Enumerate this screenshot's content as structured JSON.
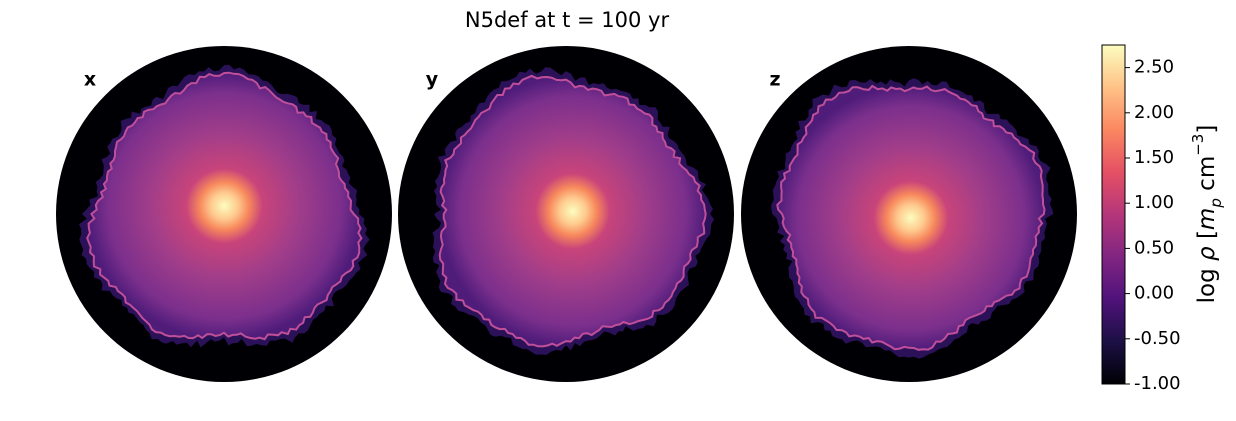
{
  "chart_data": {
    "type": "image",
    "title": "N5def at t = 100 yr",
    "panels": [
      "x",
      "y",
      "z"
    ],
    "colormap": "magma",
    "colorbar_label": [
      "log ",
      "ρ",
      " [",
      "m",
      "p",
      " cm",
      "−3",
      "]"
    ],
    "clim": [
      -1,
      2.75
    ],
    "cticks": [
      {
        "value": -1,
        "label": "-1.00"
      },
      {
        "value": -0.5,
        "label": "-0.50"
      },
      {
        "value": 0,
        "label": "0.00"
      },
      {
        "value": 0.5,
        "label": "0.50"
      },
      {
        "value": 1,
        "label": "1.00"
      },
      {
        "value": 1.5,
        "label": "1.50"
      },
      {
        "value": 2,
        "label": "2.00"
      },
      {
        "value": 2.5,
        "label": "2.50"
      }
    ]
  }
}
